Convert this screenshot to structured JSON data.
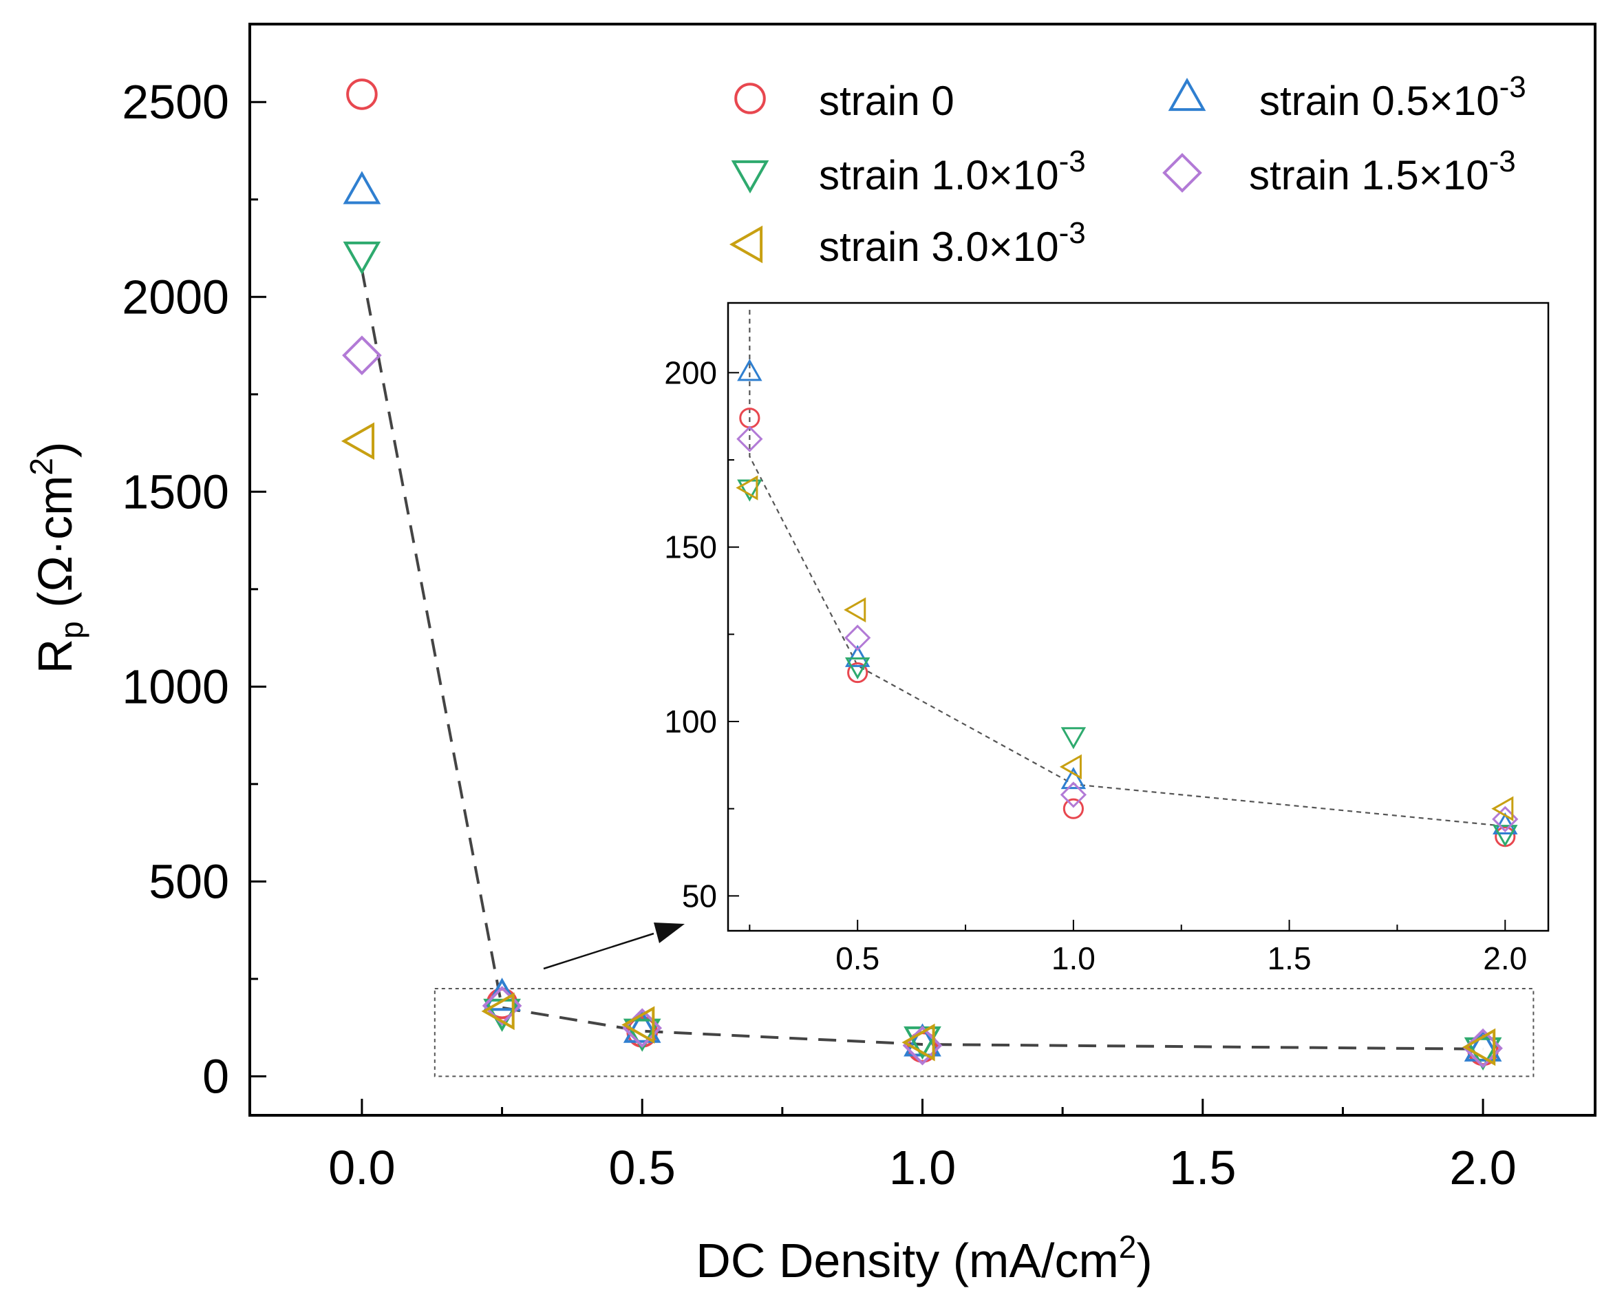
{
  "chart_data": {
    "type": "scatter",
    "xlabel": "DC Density (mA/cm",
    "xlabel_sup": "2",
    "xlabel_end": ")",
    "ylabel": "R",
    "ylabel_sub": "p",
    "ylabel_unit": " (Ω·cm",
    "ylabel_sup": "2",
    "ylabel_end": ")",
    "xlim": [
      -0.2,
      2.2
    ],
    "ylim": [
      -100,
      2700
    ],
    "xticks": [
      0.0,
      0.5,
      1.0,
      1.5,
      2.0
    ],
    "xtick_labels": [
      "0.0",
      "0.5",
      "1.0",
      "1.5",
      "2.0"
    ],
    "yticks": [
      0,
      500,
      1000,
      1500,
      2000,
      2500
    ],
    "ytick_labels": [
      "0",
      "500",
      "1000",
      "1500",
      "2000",
      "2500"
    ],
    "legend_position": "top-right",
    "series": [
      {
        "name": "strain 0",
        "label_main": "strain 0",
        "label_exp": "",
        "marker": "circle",
        "color": "#e8474f",
        "x": [
          0.0,
          0.25,
          0.5,
          1.0,
          2.0
        ],
        "y": [
          2520,
          187,
          114,
          75,
          67
        ]
      },
      {
        "name": "strain 0.5×10⁻³",
        "label_main": "strain 0.5×10",
        "label_exp": "-3",
        "marker": "triangle-up",
        "color": "#2f7fd0",
        "x": [
          0.0,
          0.25,
          0.5,
          1.0,
          2.0
        ],
        "y": [
          2270,
          200,
          118,
          83,
          70
        ]
      },
      {
        "name": "strain 1.0×10⁻³",
        "label_main": "strain 1.0×10",
        "label_exp": "-3",
        "marker": "triangle-down",
        "color": "#2eaa6e",
        "x": [
          0.0,
          0.25,
          0.5,
          1.0,
          2.0
        ],
        "y": [
          2110,
          167,
          116,
          96,
          68
        ]
      },
      {
        "name": "strain 1.5×10⁻³",
        "label_main": "strain 1.5×10",
        "label_exp": "-3",
        "marker": "diamond",
        "color": "#b27ad6",
        "x": [
          0.0,
          0.25,
          0.5,
          1.0,
          2.0
        ],
        "y": [
          1850,
          181,
          124,
          79,
          72
        ]
      },
      {
        "name": "strain 3.0×10⁻³",
        "label_main": "strain 3.0×10",
        "label_exp": "-3",
        "marker": "triangle-left",
        "color": "#c8a012",
        "x": [
          0.0,
          0.25,
          0.5,
          1.0,
          2.0
        ],
        "y": [
          1630,
          167,
          132,
          87,
          75
        ]
      }
    ],
    "mean_line": {
      "style": "dashed",
      "x": [
        0.0,
        0.25,
        0.5,
        1.0,
        2.0
      ],
      "y": [
        2070,
        176,
        116,
        82,
        70
      ]
    },
    "inset": {
      "xlim": [
        0.2,
        2.1
      ],
      "ylim": [
        40,
        220
      ],
      "xticks": [
        0.5,
        1.0,
        1.5,
        2.0
      ],
      "xtick_labels": [
        "0.5",
        "1.0",
        "1.5",
        "2.0"
      ],
      "yticks": [
        50,
        100,
        150,
        200
      ],
      "ytick_labels": [
        "50",
        "100",
        "150",
        "200"
      ]
    },
    "zoom_box": {
      "x": [
        0.13,
        2.09
      ],
      "y": [
        0,
        225
      ]
    }
  }
}
